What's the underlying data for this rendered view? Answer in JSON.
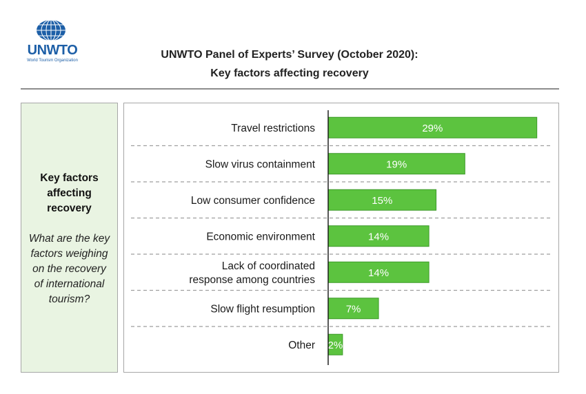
{
  "logo": {
    "name": "UNWTO",
    "subtitle": "World Tourism Organization"
  },
  "header": {
    "title_line1": "UNWTO Panel of Experts’ Survey (October 2020):",
    "title_line2": "Key factors affecting recovery"
  },
  "sidebar": {
    "title_lines": [
      "Key factors",
      "affecting",
      "recovery"
    ],
    "question_lines": [
      "What are the key",
      "factors weighing",
      "on the recovery",
      "of international",
      "tourism?"
    ]
  },
  "colors": {
    "bar": "#5cc33f",
    "bar_border": "#3c9a28",
    "sidebar_bg": "#e9f4e2"
  },
  "chart_data": {
    "type": "bar",
    "orientation": "horizontal",
    "categories": [
      [
        "Travel restrictions"
      ],
      [
        "Slow virus containment"
      ],
      [
        "Low consumer confidence"
      ],
      [
        "Economic environment"
      ],
      [
        "Lack of coordinated",
        "response among countries"
      ],
      [
        "Slow flight resumption"
      ],
      [
        "Other"
      ]
    ],
    "values": [
      29,
      19,
      15,
      14,
      14,
      7,
      2
    ],
    "data_labels": [
      "29%",
      "19%",
      "15%",
      "14%",
      "14%",
      "7%",
      "2%"
    ],
    "unit": "%",
    "xlim": [
      0,
      32
    ],
    "grid": false
  }
}
